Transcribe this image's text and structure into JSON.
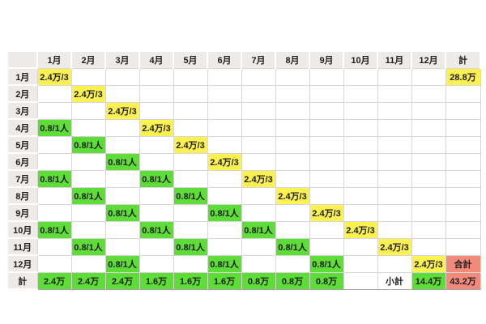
{
  "colors": {
    "yellow": "#fbf151",
    "green": "#5edc38",
    "salmon": "#f08a7b",
    "header_bg": "#edeae7",
    "grid_line": "#d9d7d4",
    "text": "#1d1d1d",
    "background": "#ffffff"
  },
  "chart_data": {
    "type": "table",
    "corner_label": "",
    "col_headers": [
      "1月",
      "2月",
      "3月",
      "4月",
      "5月",
      "6月",
      "7月",
      "8月",
      "9月",
      "10月",
      "11月",
      "12月",
      "計"
    ],
    "rows": [
      {
        "label": "1月",
        "cells": [
          {
            "v": "2.4万/3",
            "bg": "yellow"
          },
          null,
          null,
          null,
          null,
          null,
          null,
          null,
          null,
          null,
          null,
          null,
          {
            "v": "28.8万",
            "bg": "yellow"
          }
        ]
      },
      {
        "label": "2月",
        "cells": [
          null,
          {
            "v": "2.4万/3",
            "bg": "yellow"
          },
          null,
          null,
          null,
          null,
          null,
          null,
          null,
          null,
          null,
          null,
          null
        ]
      },
      {
        "label": "3月",
        "cells": [
          null,
          null,
          {
            "v": "2.4万/3",
            "bg": "yellow"
          },
          null,
          null,
          null,
          null,
          null,
          null,
          null,
          null,
          null,
          null
        ]
      },
      {
        "label": "4月",
        "cells": [
          {
            "v": "0.8/1人",
            "bg": "green"
          },
          null,
          null,
          {
            "v": "2.4万/3",
            "bg": "yellow"
          },
          null,
          null,
          null,
          null,
          null,
          null,
          null,
          null,
          null
        ]
      },
      {
        "label": "5月",
        "cells": [
          null,
          {
            "v": "0.8/1人",
            "bg": "green"
          },
          null,
          null,
          {
            "v": "2.4万/3",
            "bg": "yellow"
          },
          null,
          null,
          null,
          null,
          null,
          null,
          null,
          null
        ]
      },
      {
        "label": "6月",
        "cells": [
          null,
          null,
          {
            "v": "0.8/1人",
            "bg": "green"
          },
          null,
          null,
          {
            "v": "2.4万/3",
            "bg": "yellow"
          },
          null,
          null,
          null,
          null,
          null,
          null,
          null
        ]
      },
      {
        "label": "7月",
        "cells": [
          {
            "v": "0.8/1人",
            "bg": "green"
          },
          null,
          null,
          {
            "v": "0.8/1人",
            "bg": "green"
          },
          null,
          null,
          {
            "v": "2.4万/3",
            "bg": "yellow"
          },
          null,
          null,
          null,
          null,
          null,
          null
        ]
      },
      {
        "label": "8月",
        "cells": [
          null,
          {
            "v": "0.8/1人",
            "bg": "green"
          },
          null,
          null,
          {
            "v": "0.8/1人",
            "bg": "green"
          },
          null,
          null,
          {
            "v": "2.4万/3",
            "bg": "yellow"
          },
          null,
          null,
          null,
          null,
          null
        ]
      },
      {
        "label": "9月",
        "cells": [
          null,
          null,
          {
            "v": "0.8/1人",
            "bg": "green"
          },
          null,
          null,
          {
            "v": "0.8/1人",
            "bg": "green"
          },
          null,
          null,
          {
            "v": "2.4万/3",
            "bg": "yellow"
          },
          null,
          null,
          null,
          null
        ]
      },
      {
        "label": "10月",
        "cells": [
          {
            "v": "0.8/1人",
            "bg": "green"
          },
          null,
          null,
          {
            "v": "0.8/1人",
            "bg": "green"
          },
          null,
          null,
          {
            "v": "0.8/1人",
            "bg": "green"
          },
          null,
          null,
          {
            "v": "2.4万/3",
            "bg": "yellow"
          },
          null,
          null,
          null
        ]
      },
      {
        "label": "11月",
        "cells": [
          null,
          {
            "v": "0.8/1人",
            "bg": "green"
          },
          null,
          null,
          {
            "v": "0.8/1人",
            "bg": "green"
          },
          null,
          null,
          {
            "v": "0.8/1人",
            "bg": "green"
          },
          null,
          null,
          {
            "v": "2.4万/3",
            "bg": "yellow"
          },
          null,
          null
        ]
      },
      {
        "label": "12月",
        "cells": [
          null,
          null,
          {
            "v": "0.8/1人",
            "bg": "green"
          },
          null,
          null,
          {
            "v": "0.8/1人",
            "bg": "green"
          },
          null,
          null,
          {
            "v": "0.8/1人",
            "bg": "green"
          },
          null,
          null,
          {
            "v": "2.4万/3",
            "bg": "yellow"
          },
          {
            "v": "合計",
            "bg": "salmon"
          }
        ]
      },
      {
        "label": "計",
        "cells": [
          {
            "v": "2.4万",
            "bg": "green"
          },
          {
            "v": "2.4万",
            "bg": "green"
          },
          {
            "v": "2.4万",
            "bg": "green"
          },
          {
            "v": "1.6万",
            "bg": "green"
          },
          {
            "v": "1.6万",
            "bg": "green"
          },
          {
            "v": "1.6万",
            "bg": "green"
          },
          {
            "v": "0.8万",
            "bg": "green"
          },
          {
            "v": "0.8万",
            "bg": "green"
          },
          {
            "v": "0.8万",
            "bg": "green"
          },
          null,
          {
            "v": "小計",
            "bg": "none"
          },
          {
            "v": "14.4万",
            "bg": "green"
          },
          {
            "v": "43.2万",
            "bg": "salmon"
          }
        ]
      }
    ]
  }
}
